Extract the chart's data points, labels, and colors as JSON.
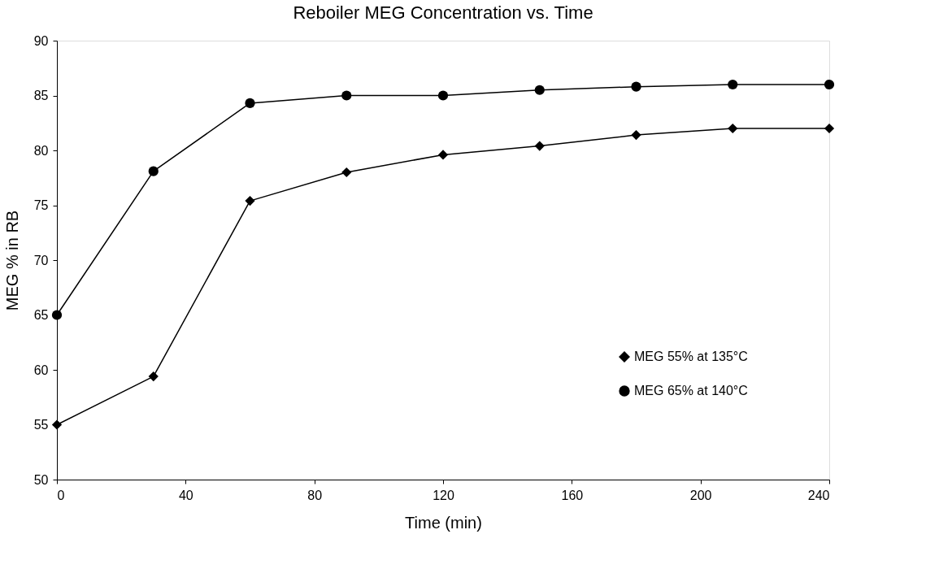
{
  "chart_data": {
    "type": "line",
    "title": "Reboiler MEG Concentration vs. Time",
    "xlabel": "Time (min)",
    "ylabel": "MEG % in RB",
    "x": [
      0,
      30,
      60,
      90,
      120,
      150,
      180,
      210,
      240
    ],
    "series": [
      {
        "name": "MEG 55% at 135°C",
        "color": "#000000",
        "marker": "diamond",
        "values": [
          55,
          59.4,
          75.4,
          78,
          79.6,
          80.4,
          81.4,
          82,
          82
        ]
      },
      {
        "name": "MEG 65% at 140°C",
        "color": "#000000",
        "marker": "circle",
        "values": [
          65,
          78.1,
          84.3,
          85,
          85,
          85.5,
          85.8,
          86,
          86
        ]
      }
    ],
    "xlim": [
      0,
      240
    ],
    "xticks": [
      0,
      40,
      80,
      120,
      160,
      200,
      240
    ],
    "ylim": [
      50,
      90
    ],
    "yticks": [
      50,
      55,
      60,
      65,
      70,
      75,
      80,
      85,
      90
    ],
    "grid": false,
    "legend": "bottom right",
    "line_style": "solid"
  }
}
